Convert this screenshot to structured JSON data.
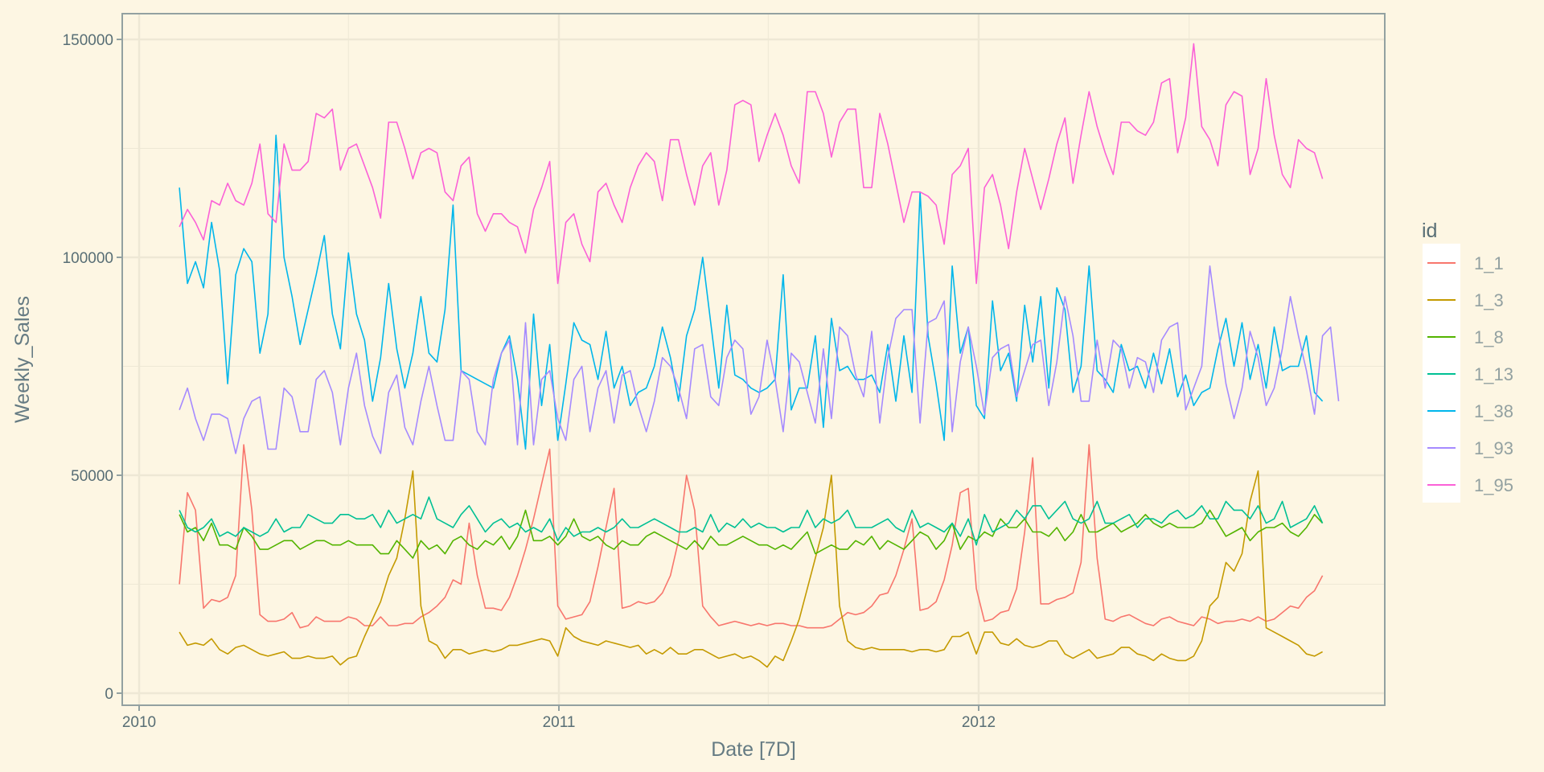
{
  "chart_data": {
    "type": "line",
    "xlabel": "Date [7D]",
    "ylabel": "Weekly_Sales",
    "x_start": "2010-02-05",
    "x_step_days": 7,
    "x_ticks": [
      "2010",
      "2011",
      "2012"
    ],
    "y_ticks": [
      "0",
      "50000",
      "100000",
      "150000"
    ],
    "ylim": [
      0,
      155000
    ],
    "xlim": [
      "2009-12-20",
      "2012-12-31"
    ],
    "grid": true,
    "legend_title": "id",
    "legend_position": "right",
    "series": [
      {
        "name": "1_1",
        "color": "#F8766D",
        "values": [
          25000,
          46000,
          42000,
          19500,
          21500,
          21000,
          22000,
          27000,
          57000,
          42000,
          18000,
          16500,
          16500,
          17000,
          18500,
          15000,
          15500,
          17500,
          16500,
          16500,
          16500,
          17500,
          17000,
          15500,
          15500,
          17500,
          15500,
          15500,
          16000,
          16000,
          17500,
          18500,
          20000,
          22000,
          26000,
          25000,
          39000,
          27000,
          19500,
          19500,
          19000,
          22000,
          27000,
          33000,
          40000,
          48000,
          56000,
          20000,
          17000,
          17500,
          18000,
          21000,
          29000,
          38000,
          47000,
          19500,
          20000,
          21000,
          20500,
          21000,
          23000,
          27000,
          35000,
          50000,
          42000,
          20000,
          17500,
          15500,
          16000,
          16500,
          16000,
          15500,
          16000,
          15500,
          16000,
          16000,
          15500,
          15500,
          15000,
          15000,
          15000,
          15500,
          17000,
          18500,
          18000,
          18500,
          20000,
          22500,
          23000,
          27000,
          33000,
          40000,
          19000,
          19500,
          21000,
          26000,
          34000,
          46000,
          47000,
          24000,
          16500,
          17000,
          18500,
          19000,
          24000,
          37000,
          54000,
          20500,
          20500,
          21500,
          22000,
          23000,
          30000,
          57000,
          31000,
          17000,
          16500,
          17500,
          18000,
          17000,
          16000,
          15500,
          17000,
          17500,
          16500,
          16000,
          15500,
          17500,
          17000,
          16000,
          16500,
          16500,
          17000,
          16500,
          17500,
          16500,
          17000,
          18500,
          20000,
          19500,
          22000,
          23500,
          27000
        ]
      },
      {
        "name": "1_3",
        "color": "#C49A00",
        "values": [
          14000,
          11000,
          11500,
          11000,
          12500,
          10000,
          9000,
          10500,
          11000,
          10000,
          9000,
          8500,
          9000,
          9500,
          8000,
          8000,
          8500,
          8000,
          8000,
          8500,
          6500,
          8000,
          8500,
          13000,
          17000,
          21000,
          27000,
          31000,
          40000,
          51000,
          20000,
          12000,
          11000,
          8000,
          10000,
          10000,
          9000,
          9500,
          10000,
          9500,
          10000,
          11000,
          11000,
          11500,
          12000,
          12500,
          12000,
          8500,
          15000,
          13000,
          12000,
          11500,
          11000,
          12000,
          11500,
          11000,
          10500,
          11000,
          9000,
          10000,
          9000,
          10500,
          9000,
          9000,
          10000,
          10000,
          9000,
          8000,
          8500,
          9000,
          8000,
          8500,
          7500,
          6000,
          8500,
          7500,
          12000,
          17000,
          24000,
          31000,
          38000,
          50000,
          20000,
          12000,
          10500,
          10000,
          10500,
          10000,
          10000,
          10000,
          10000,
          9500,
          10000,
          10000,
          9500,
          10000,
          13000,
          13000,
          14000,
          9000,
          14000,
          14000,
          11500,
          11000,
          12500,
          11000,
          10500,
          11000,
          12000,
          12000,
          9000,
          8000,
          9000,
          10000,
          8000,
          8500,
          9000,
          10500,
          10500,
          9000,
          8500,
          7500,
          9000,
          8000,
          7500,
          7500,
          8500,
          12000,
          20000,
          22000,
          30000,
          28000,
          32000,
          44000,
          51000,
          15000,
          14000,
          13000,
          12000,
          11000,
          9000,
          8500,
          9500
        ]
      },
      {
        "name": "1_8",
        "color": "#53B400",
        "values": [
          41000,
          37000,
          38000,
          35000,
          39000,
          34000,
          34000,
          33000,
          38000,
          36000,
          33000,
          33000,
          34000,
          35000,
          35000,
          33000,
          34000,
          35000,
          35000,
          34000,
          34000,
          35000,
          34000,
          34000,
          34000,
          32000,
          32000,
          35000,
          33000,
          31000,
          35000,
          33000,
          34000,
          32000,
          35000,
          36000,
          34000,
          33000,
          35000,
          34000,
          36000,
          33000,
          36000,
          42000,
          35000,
          35000,
          36000,
          34000,
          36000,
          40000,
          36000,
          35000,
          36000,
          34000,
          33000,
          35000,
          34000,
          34000,
          36000,
          37000,
          36000,
          35000,
          34000,
          33000,
          35000,
          33000,
          36000,
          34000,
          34000,
          35000,
          36000,
          35000,
          34000,
          34000,
          33000,
          34000,
          33000,
          35000,
          37000,
          32000,
          33000,
          34000,
          33000,
          33000,
          35000,
          34000,
          36000,
          33000,
          35000,
          34000,
          33000,
          35000,
          37000,
          36000,
          33000,
          35000,
          39000,
          33000,
          36000,
          35000,
          37000,
          36000,
          40000,
          38000,
          38000,
          40000,
          37000,
          37000,
          36000,
          38000,
          35000,
          37000,
          41000,
          37000,
          37000,
          38000,
          39000,
          37000,
          38000,
          39000,
          41000,
          39000,
          38000,
          39000,
          38000,
          38000,
          38000,
          39000,
          42000,
          39000,
          36000,
          37000,
          38000,
          35000,
          37000,
          38000,
          38000,
          39000,
          37000,
          36000,
          38000,
          41000,
          39000
        ]
      },
      {
        "name": "1_13",
        "color": "#00C094",
        "values": [
          42000,
          38000,
          37000,
          38000,
          40000,
          36000,
          37000,
          36000,
          38000,
          37000,
          36000,
          37000,
          40000,
          37000,
          38000,
          38000,
          41000,
          40000,
          39000,
          39000,
          41000,
          41000,
          40000,
          40000,
          41000,
          38000,
          42000,
          39000,
          40000,
          41000,
          40000,
          45000,
          40000,
          39000,
          38000,
          41000,
          43000,
          40000,
          37000,
          39000,
          40000,
          38000,
          39000,
          37000,
          38000,
          37000,
          40000,
          35000,
          38000,
          36000,
          37000,
          37000,
          38000,
          37000,
          38000,
          40000,
          38000,
          38000,
          39000,
          40000,
          39000,
          38000,
          37000,
          37000,
          38000,
          37000,
          41000,
          37000,
          39000,
          38000,
          40000,
          38000,
          39000,
          38000,
          38000,
          37000,
          38000,
          38000,
          42000,
          38000,
          40000,
          39000,
          40000,
          42000,
          38000,
          38000,
          38000,
          39000,
          40000,
          38000,
          37000,
          42000,
          38000,
          39000,
          38000,
          37000,
          39000,
          36000,
          40000,
          34000,
          41000,
          37000,
          38000,
          39000,
          42000,
          40000,
          43000,
          43000,
          40000,
          42000,
          44000,
          40000,
          39000,
          40000,
          44000,
          39000,
          39000,
          40000,
          41000,
          38000,
          40000,
          40000,
          39000,
          41000,
          42000,
          40000,
          41000,
          43000,
          40000,
          40000,
          44000,
          42000,
          42000,
          40000,
          43000,
          39000,
          40000,
          44000,
          38000,
          39000,
          40000,
          43000,
          39000
        ]
      },
      {
        "name": "1_38",
        "color": "#00B6EB",
        "values": [
          116000,
          94000,
          99000,
          93000,
          108000,
          97000,
          71000,
          96000,
          102000,
          99000,
          78000,
          87000,
          128000,
          100000,
          91000,
          80000,
          88000,
          96000,
          105000,
          87000,
          79000,
          101000,
          87000,
          81000,
          67000,
          77000,
          94000,
          79000,
          70000,
          78000,
          91000,
          78000,
          76000,
          88000,
          112000,
          74000,
          73000,
          72000,
          71000,
          70000,
          78000,
          82000,
          72000,
          56000,
          87000,
          66000,
          80000,
          58000,
          71000,
          85000,
          81000,
          80000,
          72000,
          83000,
          70000,
          75000,
          66000,
          69000,
          70000,
          75000,
          84000,
          77000,
          67000,
          82000,
          88000,
          100000,
          85000,
          70000,
          89000,
          73000,
          72000,
          70000,
          69000,
          70000,
          72000,
          96000,
          65000,
          70000,
          70000,
          82000,
          61000,
          86000,
          74000,
          75000,
          72000,
          72000,
          73000,
          69000,
          80000,
          67000,
          82000,
          69000,
          115000,
          82000,
          71000,
          58000,
          98000,
          78000,
          84000,
          66000,
          63000,
          90000,
          74000,
          78000,
          67000,
          89000,
          76000,
          91000,
          70000,
          93000,
          88000,
          69000,
          75000,
          98000,
          74000,
          72000,
          69000,
          80000,
          74000,
          75000,
          70000,
          78000,
          71000,
          79000,
          68000,
          73000,
          66000,
          69000,
          70000,
          79000,
          86000,
          75000,
          85000,
          72000,
          80000,
          70000,
          84000,
          74000,
          75000,
          75000,
          82000,
          69000,
          67000
        ]
      },
      {
        "name": "1_93",
        "color": "#A58AFF",
        "values": [
          65000,
          70000,
          63000,
          58000,
          64000,
          64000,
          63000,
          55000,
          63000,
          67000,
          68000,
          56000,
          56000,
          70000,
          68000,
          60000,
          60000,
          72000,
          74000,
          69000,
          57000,
          70000,
          78000,
          66000,
          59000,
          55000,
          69000,
          73000,
          61000,
          57000,
          67000,
          75000,
          66000,
          58000,
          58000,
          74000,
          72000,
          60000,
          57000,
          72000,
          78000,
          81000,
          57000,
          85000,
          57000,
          72000,
          74000,
          63000,
          58000,
          72000,
          75000,
          60000,
          70000,
          74000,
          62000,
          73000,
          74000,
          66000,
          60000,
          67000,
          77000,
          75000,
          70000,
          63000,
          79000,
          80000,
          68000,
          66000,
          77000,
          81000,
          79000,
          64000,
          68000,
          81000,
          72000,
          60000,
          78000,
          76000,
          69000,
          62000,
          79000,
          63000,
          84000,
          82000,
          73000,
          68000,
          83000,
          62000,
          77000,
          86000,
          88000,
          88000,
          62000,
          85000,
          86000,
          90000,
          60000,
          76000,
          84000,
          75000,
          64000,
          77000,
          79000,
          80000,
          68000,
          74000,
          80000,
          81000,
          66000,
          76000,
          91000,
          82000,
          67000,
          67000,
          81000,
          70000,
          81000,
          79000,
          70000,
          77000,
          76000,
          69000,
          81000,
          84000,
          85000,
          65000,
          70000,
          75000,
          98000,
          84000,
          71000,
          63000,
          70000,
          83000,
          77000,
          66000,
          70000,
          79000,
          91000,
          82000,
          74000,
          64000,
          82000,
          84000,
          67000
        ]
      },
      {
        "name": "1_95",
        "color": "#FB61D7",
        "values": [
          107000,
          111000,
          108000,
          104000,
          113000,
          112000,
          117000,
          113000,
          112000,
          117000,
          126000,
          110000,
          108000,
          126000,
          120000,
          120000,
          122000,
          133000,
          132000,
          134000,
          120000,
          125000,
          126000,
          121000,
          116000,
          109000,
          131000,
          131000,
          125000,
          118000,
          124000,
          125000,
          124000,
          115000,
          113000,
          121000,
          123000,
          110000,
          106000,
          110000,
          110000,
          108000,
          107000,
          101000,
          111000,
          116000,
          122000,
          94000,
          108000,
          110000,
          103000,
          99000,
          115000,
          117000,
          112000,
          108000,
          116000,
          121000,
          124000,
          122000,
          113000,
          127000,
          127000,
          119000,
          112000,
          121000,
          124000,
          112000,
          120000,
          135000,
          136000,
          135000,
          122000,
          128000,
          133000,
          128000,
          121000,
          117000,
          138000,
          138000,
          133000,
          123000,
          131000,
          134000,
          134000,
          116000,
          116000,
          133000,
          126000,
          117000,
          108000,
          115000,
          115000,
          114000,
          112000,
          103000,
          119000,
          121000,
          125000,
          94000,
          116000,
          119000,
          112000,
          102000,
          115000,
          125000,
          118000,
          111000,
          118000,
          126000,
          132000,
          117000,
          128000,
          138000,
          130000,
          124000,
          119000,
          131000,
          131000,
          129000,
          128000,
          131000,
          140000,
          141000,
          124000,
          132000,
          149000,
          130000,
          127000,
          121000,
          135000,
          138000,
          137000,
          119000,
          125000,
          141000,
          128000,
          119000,
          116000,
          127000,
          125000,
          124000,
          118000
        ]
      }
    ]
  }
}
